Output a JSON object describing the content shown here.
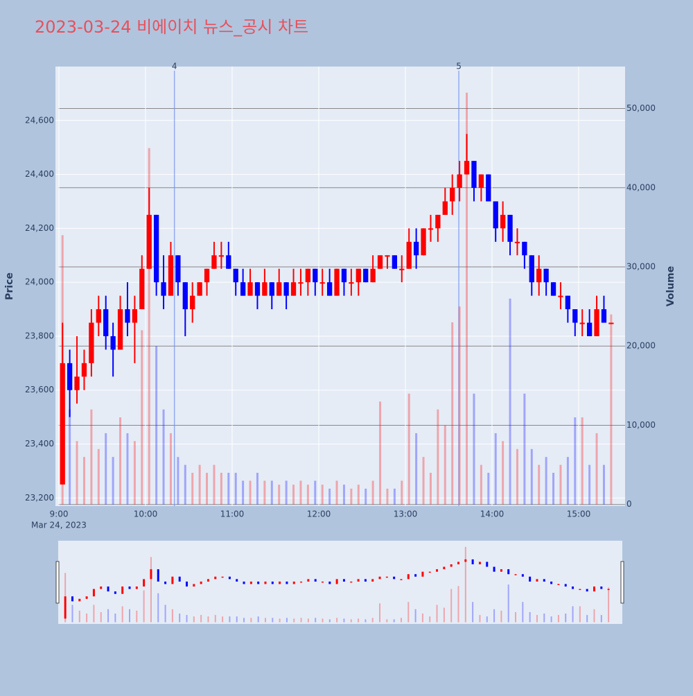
{
  "chart_data": {
    "type": "candlestick",
    "title": "2023-03-24 비에이치 뉴스_공시 차트",
    "y_label": "Price",
    "y2_label": "Volume",
    "x_sublabel": "Mar 24, 2023",
    "increasing_color": "#ff0000",
    "decreasing_color": "#0000ff",
    "x": [
      "09:00",
      "09:05",
      "09:10",
      "09:15",
      "09:20",
      "09:25",
      "09:30",
      "09:35",
      "09:40",
      "09:45",
      "09:50",
      "09:55",
      "10:00",
      "10:05",
      "10:10",
      "10:15",
      "10:20",
      "10:25",
      "10:30",
      "10:35",
      "10:40",
      "10:45",
      "10:50",
      "10:55",
      "11:00",
      "11:05",
      "11:10",
      "11:15",
      "11:20",
      "11:25",
      "11:30",
      "11:35",
      "11:40",
      "11:45",
      "11:50",
      "11:55",
      "12:00",
      "12:05",
      "12:10",
      "12:15",
      "12:20",
      "12:25",
      "12:30",
      "12:35",
      "12:40",
      "12:45",
      "12:50",
      "12:55",
      "13:00",
      "13:05",
      "13:10",
      "13:15",
      "13:20",
      "13:25",
      "13:30",
      "13:35",
      "13:40",
      "13:45",
      "13:50",
      "13:55",
      "14:00",
      "14:05",
      "14:10",
      "14:15",
      "14:20",
      "14:25",
      "14:30",
      "14:35",
      "14:40",
      "14:45",
      "14:50",
      "14:55",
      "15:00",
      "15:05",
      "15:10",
      "15:15",
      "15:20"
    ],
    "open": [
      23250,
      23700,
      23600,
      23650,
      23700,
      23850,
      23900,
      23800,
      23750,
      23900,
      23850,
      23900,
      24050,
      24250,
      24000,
      23950,
      24100,
      24000,
      23900,
      23950,
      24000,
      24050,
      24100,
      24100,
      24050,
      24000,
      23950,
      24000,
      23950,
      24000,
      23950,
      24000,
      23950,
      24000,
      24000,
      24050,
      24000,
      24000,
      23950,
      24050,
      24000,
      24000,
      24050,
      24000,
      24050,
      24100,
      24100,
      24050,
      24050,
      24150,
      24100,
      24200,
      24200,
      24250,
      24300,
      24350,
      24400,
      24450,
      24350,
      24400,
      24300,
      24200,
      24250,
      24150,
      24150,
      24100,
      24000,
      24050,
      24000,
      23950,
      23950,
      23900,
      23850,
      23850,
      23800,
      23900,
      23850
    ],
    "high": [
      23850,
      23750,
      23800,
      23750,
      23900,
      23950,
      23950,
      23850,
      23950,
      24000,
      23950,
      24100,
      24350,
      24250,
      24100,
      24150,
      24100,
      24000,
      24000,
      24000,
      24050,
      24150,
      24150,
      24150,
      24050,
      24050,
      24050,
      24000,
      24050,
      24000,
      24050,
      24000,
      24050,
      24050,
      24050,
      24050,
      24050,
      24050,
      24050,
      24050,
      24050,
      24050,
      24050,
      24100,
      24100,
      24100,
      24100,
      24100,
      24200,
      24200,
      24200,
      24250,
      24250,
      24350,
      24400,
      24450,
      24550,
      24450,
      24400,
      24400,
      24300,
      24300,
      24250,
      24200,
      24150,
      24100,
      24100,
      24050,
      24000,
      24000,
      23950,
      23900,
      23900,
      23900,
      23950,
      23950,
      23850
    ],
    "low": [
      23250,
      23500,
      23550,
      23600,
      23650,
      23800,
      23750,
      23650,
      23750,
      23800,
      23700,
      23900,
      24050,
      23950,
      23900,
      23950,
      23950,
      23800,
      23850,
      23950,
      23950,
      24050,
      24050,
      24050,
      23950,
      23950,
      23950,
      23900,
      23950,
      23900,
      23950,
      23900,
      23950,
      23950,
      23950,
      23950,
      23950,
      23950,
      23950,
      23950,
      23950,
      23950,
      24000,
      24000,
      24050,
      24050,
      24050,
      24000,
      24050,
      24050,
      24100,
      24150,
      24150,
      24250,
      24250,
      24300,
      24400,
      24300,
      24300,
      24300,
      24150,
      24150,
      24100,
      24100,
      24050,
      23950,
      23950,
      23950,
      23950,
      23900,
      23850,
      23800,
      23800,
      23800,
      23800,
      23850,
      23850
    ],
    "close": [
      23700,
      23600,
      23650,
      23700,
      23850,
      23900,
      23800,
      23750,
      23900,
      23850,
      23900,
      24050,
      24250,
      24000,
      23950,
      24100,
      24000,
      23900,
      23950,
      24000,
      24050,
      24100,
      24100,
      24050,
      24000,
      23950,
      24000,
      23950,
      24000,
      23950,
      24000,
      23950,
      24000,
      24000,
      24050,
      24000,
      24000,
      23950,
      24050,
      24000,
      24000,
      24050,
      24000,
      24050,
      24100,
      24100,
      24050,
      24050,
      24150,
      24100,
      24200,
      24200,
      24250,
      24300,
      24350,
      24400,
      24450,
      24350,
      24400,
      24300,
      24200,
      24250,
      24150,
      24150,
      24100,
      24000,
      24050,
      24000,
      23950,
      23950,
      23900,
      23850,
      23850,
      23800,
      23900,
      23850,
      23850
    ],
    "volume": [
      34000,
      12000,
      8000,
      6000,
      12000,
      7000,
      9000,
      6000,
      11000,
      9000,
      8000,
      22000,
      45000,
      20000,
      12000,
      9000,
      6000,
      5000,
      4000,
      5000,
      4000,
      5000,
      4000,
      4000,
      4000,
      3000,
      3000,
      4000,
      3000,
      3000,
      2500,
      3000,
      2500,
      3000,
      2500,
      3000,
      2500,
      2000,
      3000,
      2500,
      2000,
      2500,
      2000,
      3000,
      13000,
      2000,
      2000,
      3000,
      14000,
      9000,
      6000,
      4000,
      12000,
      10000,
      23000,
      25000,
      52000,
      14000,
      5000,
      4000,
      9000,
      8000,
      26000,
      7000,
      14000,
      7000,
      5000,
      6000,
      4000,
      5000,
      6000,
      11000,
      11000,
      5000,
      9000,
      5000,
      24000
    ],
    "xticks": [
      {
        "value": "09:00",
        "label": "9:00"
      },
      "10:00",
      "11:00",
      "12:00",
      "13:00",
      "14:00",
      "15:00"
    ],
    "ylim": [
      23170,
      24800
    ],
    "yticks": [
      {
        "value": 23200,
        "label": "23,200"
      },
      {
        "value": 23400,
        "label": "23,400"
      },
      {
        "value": 23600,
        "label": "23,600"
      },
      {
        "value": 23800,
        "label": "23,800"
      },
      {
        "value": 24000,
        "label": "24,000"
      },
      {
        "value": 24200,
        "label": "24,200"
      },
      {
        "value": 24400,
        "label": "24,400"
      },
      {
        "value": 24600,
        "label": "24,600"
      }
    ],
    "y2lim": [
      -200,
      55300
    ],
    "y2ticks": [
      0,
      {
        "value": 10000,
        "label": "10,000"
      },
      {
        "value": 20000,
        "label": "20,000"
      },
      {
        "value": 30000,
        "label": "30,000"
      },
      {
        "value": 40000,
        "label": "40,000"
      },
      {
        "value": 50000,
        "label": "50,000"
      }
    ],
    "annotations": [
      {
        "x": "10:20",
        "label": "4"
      },
      {
        "x": "13:37",
        "label": "5"
      }
    ]
  }
}
